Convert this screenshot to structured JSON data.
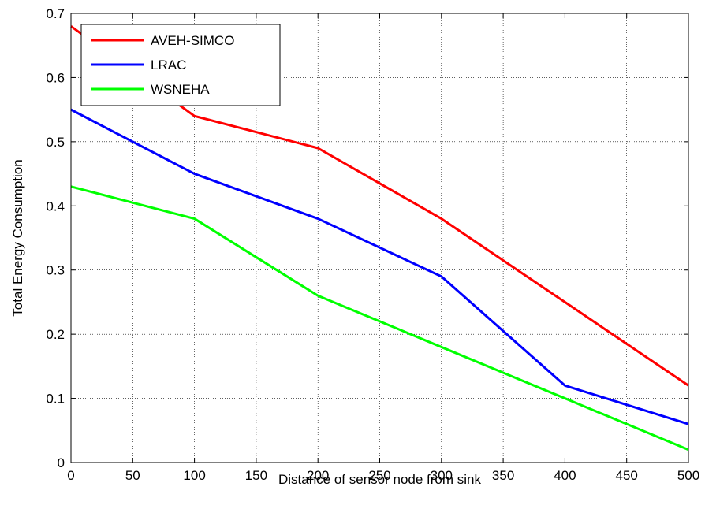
{
  "chart_data": {
    "type": "line",
    "title": "",
    "xlabel": "Distance of sensor node from sink",
    "ylabel": "Total Energy Consumption",
    "xlim": [
      0,
      500
    ],
    "ylim": [
      0,
      0.7
    ],
    "xticks": [
      0,
      50,
      100,
      150,
      200,
      250,
      300,
      350,
      400,
      450,
      500
    ],
    "yticks": [
      0,
      0.1,
      0.2,
      0.3,
      0.4,
      0.5,
      0.6,
      0.7
    ],
    "grid": true,
    "legend_position": "top-left",
    "x": [
      0,
      100,
      200,
      300,
      400,
      500
    ],
    "series": [
      {
        "name": "AVEH-SIMCO",
        "color": "#ff0000",
        "values": [
          0.68,
          0.54,
          0.49,
          0.38,
          0.25,
          0.12
        ]
      },
      {
        "name": "LRAC",
        "color": "#0000ff",
        "values": [
          0.55,
          0.45,
          0.38,
          0.29,
          0.12,
          0.06
        ]
      },
      {
        "name": "WSNEHA",
        "color": "#00ff00",
        "values": [
          0.43,
          0.38,
          0.26,
          0.18,
          0.1,
          0.02
        ]
      }
    ]
  }
}
